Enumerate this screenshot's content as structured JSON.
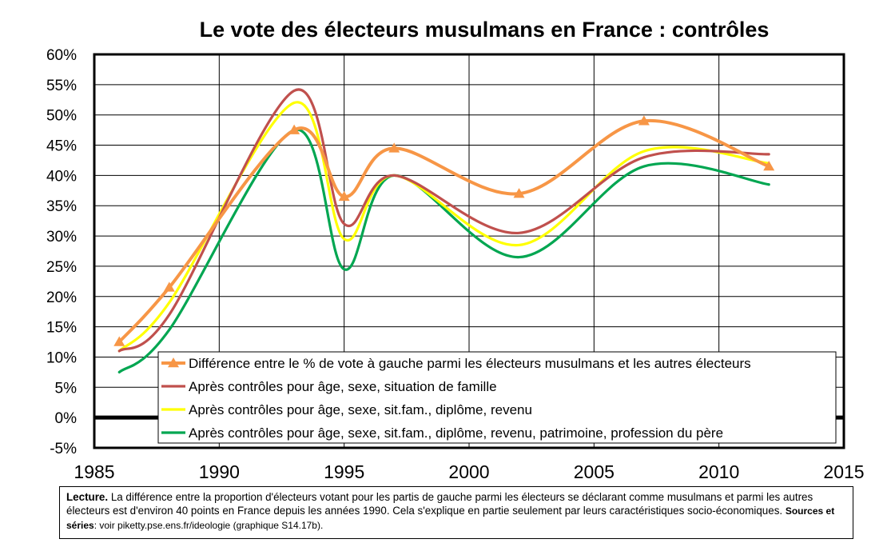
{
  "chart_data": {
    "type": "line",
    "title": "Le vote des électeurs musulmans en France : contrôles",
    "xlim": [
      1985,
      2015
    ],
    "ylim": [
      -5,
      60
    ],
    "x_ticks": [
      "1985",
      "1990",
      "1995",
      "2000",
      "2005",
      "2010",
      "2015"
    ],
    "y_ticks": [
      "-5%",
      "0%",
      "5%",
      "10%",
      "15%",
      "20%",
      "25%",
      "30%",
      "35%",
      "40%",
      "45%",
      "50%",
      "55%",
      "60%"
    ],
    "grid": true,
    "legend_position": "bottom-right",
    "series": [
      {
        "name": "Différence entre le % de vote à gauche parmi les électeurs musulmans et les autres électeurs",
        "color": "#f79646",
        "marker": "triangle",
        "x": [
          1986,
          1988,
          1993,
          1995,
          1997,
          2002,
          2007,
          2012
        ],
        "values": [
          12.5,
          21.5,
          47.5,
          36.5,
          44.5,
          37,
          49,
          41.5
        ]
      },
      {
        "name": "Après contrôles pour âge, sexe, situation de famille",
        "color": "#c0504d",
        "marker": "none",
        "x": [
          1986,
          1988,
          1993,
          1995,
          1997,
          2002,
          2007,
          2012
        ],
        "values": [
          11,
          17,
          54,
          32,
          40,
          30.5,
          43,
          43.5
        ]
      },
      {
        "name": "Après contrôles pour âge, sexe, sit.fam., diplôme, revenu",
        "color": "#ffff00",
        "marker": "none",
        "x": [
          1986,
          1988,
          1993,
          1995,
          1997,
          2002,
          2007,
          2012
        ],
        "values": [
          11,
          19,
          52,
          29.5,
          40,
          28.5,
          44,
          42
        ]
      },
      {
        "name": "Après contrôles pour âge, sexe, sit.fam., diplôme, revenu, patrimoine, profession du père",
        "color": "#00a651",
        "marker": "none",
        "x": [
          1986,
          1988,
          1993,
          1995,
          1997,
          2002,
          2007,
          2012
        ],
        "values": [
          7.5,
          14.5,
          47.5,
          24.5,
          40,
          26.5,
          41.5,
          38.5
        ]
      }
    ]
  },
  "note": {
    "lead": "Lecture.",
    "text": " La différence entre la proportion d'électeurs votant pour les partis de gauche parmi les électeurs se déclarant comme musulmans et parmi les autres électeurs est d'environ 40 points en France depuis les années 1990. Cela s'explique en partie seulement par leurs caractéristiques socio-économiques. ",
    "sources_label": "Sources et séries",
    "sources_text": ": voir piketty.pse.ens.fr/ideologie (graphique S14.17b)."
  }
}
